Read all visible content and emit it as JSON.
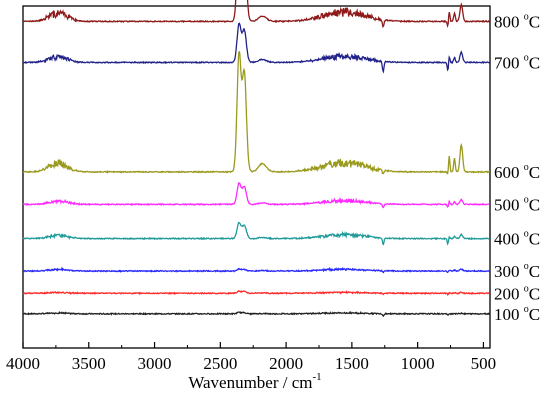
{
  "chart_data": {
    "type": "line",
    "xlabel": "Wavenumber / cm",
    "xlabel_sup": "-1",
    "xlim": [
      4000,
      450
    ],
    "x_reversed": true,
    "x_ticks": [
      4000,
      3500,
      3000,
      2500,
      2000,
      1500,
      1000,
      500
    ],
    "ylabel": "",
    "grid": false,
    "legend": "right-side labels",
    "series": [
      {
        "name": "100 °C",
        "label_main": "100 ",
        "label_unit": "C",
        "color": "#222222",
        "baseline": 0.1,
        "amp_co2": 0.004,
        "amp_water": 0.003,
        "amp_dip": 0.006,
        "amp_ir": 0.002
      },
      {
        "name": "200 °C",
        "label_main": "200 ",
        "label_unit": "C",
        "color": "#ff2a2a",
        "baseline": 0.16,
        "amp_co2": 0.006,
        "amp_water": 0.003,
        "amp_dip": 0.004,
        "amp_ir": 0.003
      },
      {
        "name": "300 °C",
        "label_main": "300 ",
        "label_unit": "C",
        "color": "#2a2aff",
        "baseline": 0.225,
        "amp_co2": 0.006,
        "amp_water": 0.006,
        "amp_dip": 0.004,
        "amp_ir": 0.006
      },
      {
        "name": "400 °C",
        "label_main": "400 ",
        "label_unit": "C",
        "color": "#219a9a",
        "baseline": 0.32,
        "amp_co2": 0.045,
        "amp_water": 0.012,
        "amp_dip": 0.02,
        "amp_ir": 0.012
      },
      {
        "name": "500 °C",
        "label_main": "500 ",
        "label_unit": "C",
        "color": "#ff2aff",
        "baseline": 0.42,
        "amp_co2": 0.06,
        "amp_water": 0.012,
        "amp_dip": 0.01,
        "amp_ir": 0.015
      },
      {
        "name": "600 °C",
        "label_main": "600 ",
        "label_unit": "C",
        "color": "#9a9a1f",
        "baseline": 0.515,
        "amp_co2": 0.34,
        "amp_water": 0.03,
        "amp_dip": 0.01,
        "amp_ir": 0.08
      },
      {
        "name": "700 °C",
        "label_main": "700 ",
        "label_unit": "C",
        "color": "#22228a",
        "baseline": 0.835,
        "amp_co2": 0.11,
        "amp_water": 0.02,
        "amp_dip": 0.03,
        "amp_ir": 0.03
      },
      {
        "name": "800 °C",
        "label_main": "800 ",
        "label_unit": "C",
        "color": "#8e1a1a",
        "baseline": 0.955,
        "amp_co2": 0.25,
        "amp_water": 0.03,
        "amp_dip": 0.02,
        "amp_ir": 0.05
      }
    ]
  }
}
